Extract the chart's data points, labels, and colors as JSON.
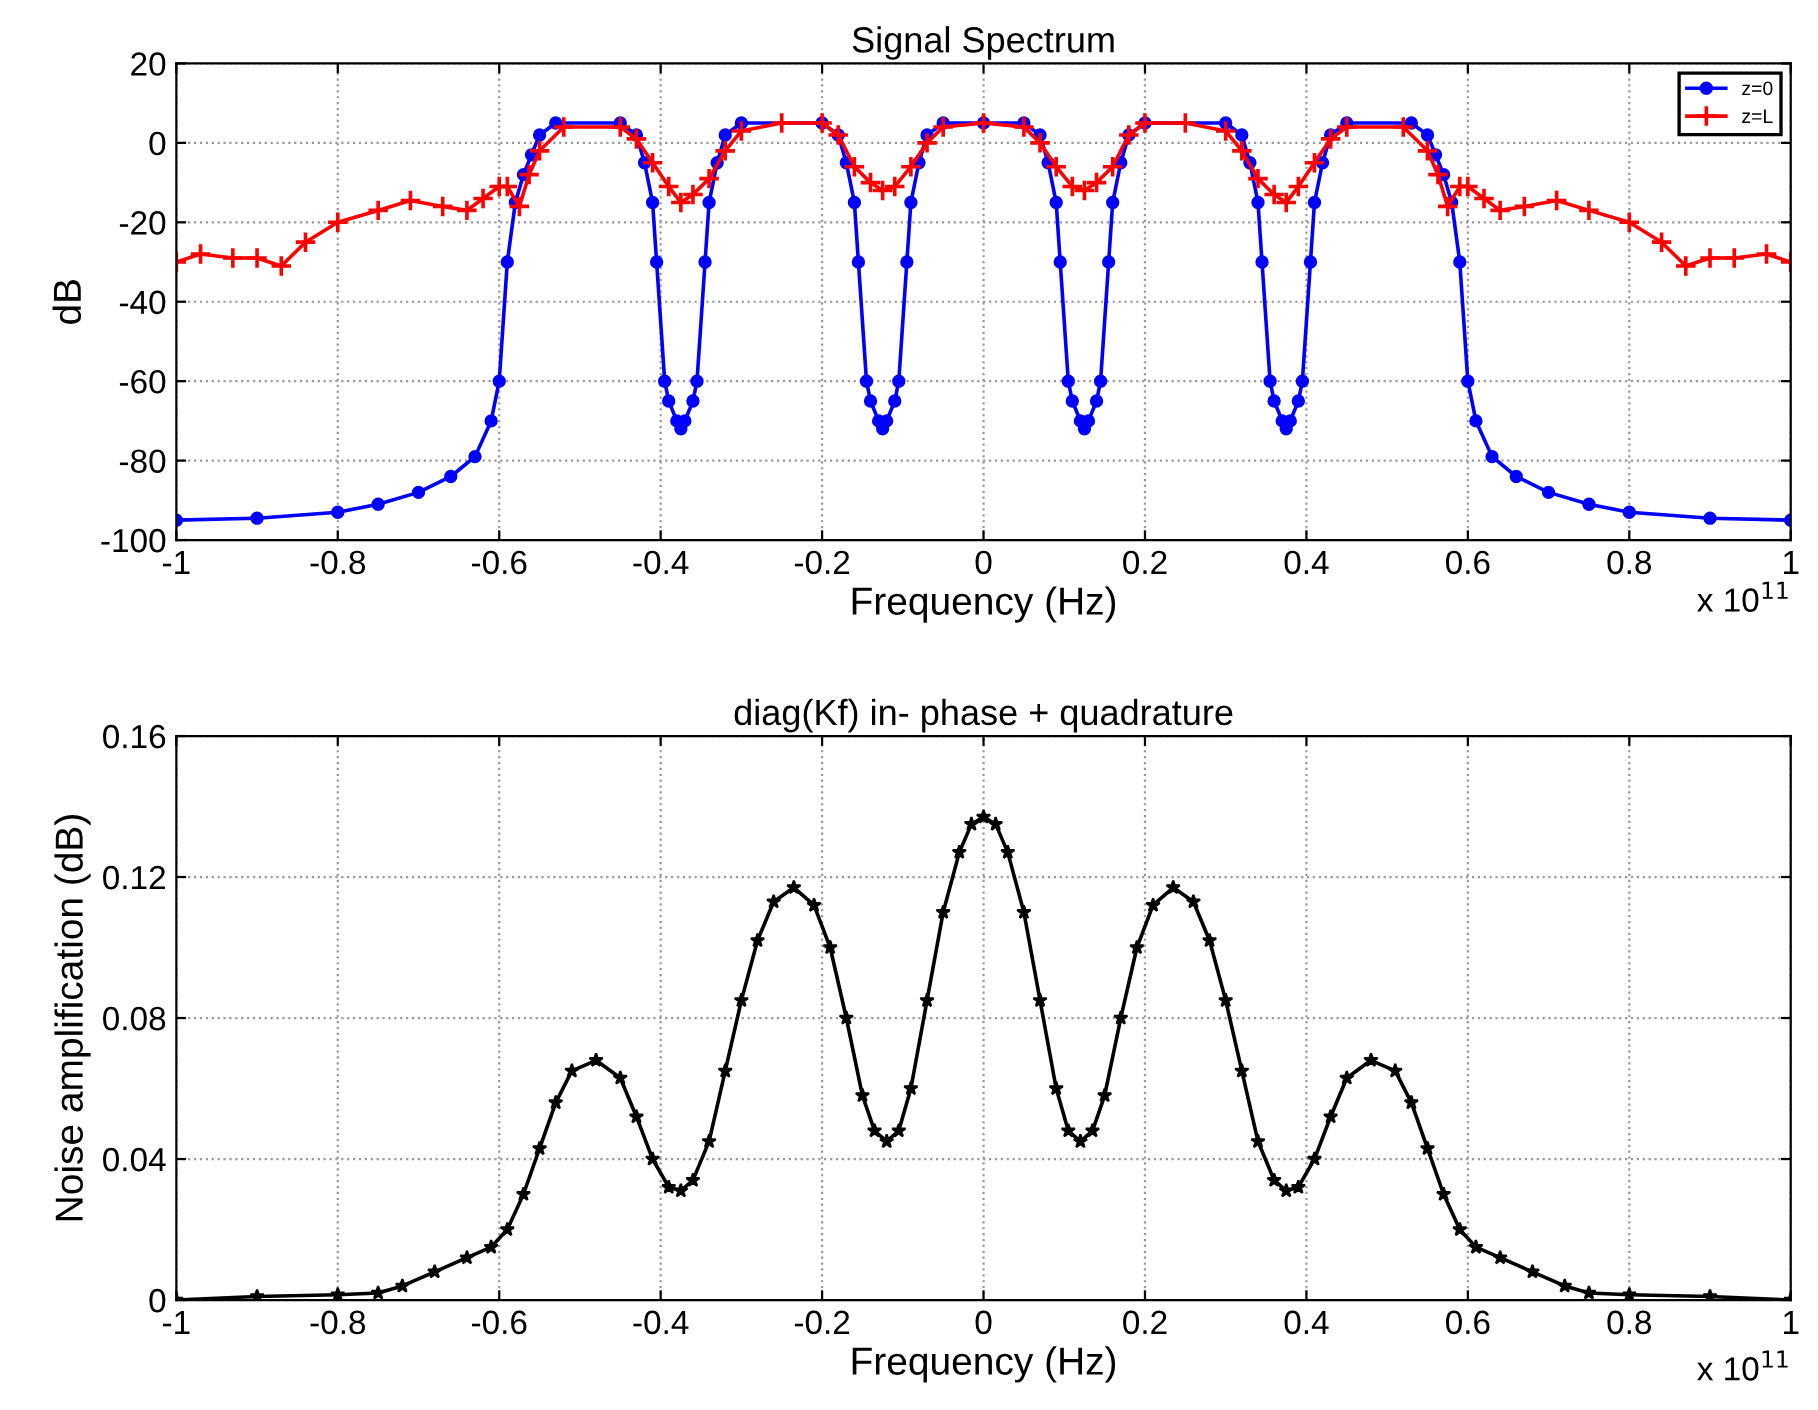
{
  "chart_data": [
    {
      "type": "line",
      "title": "Signal Spectrum",
      "xlabel": "Frequency (Hz)",
      "ylabel": "dB",
      "annotations": [
        "x 10$^{11}$"
      ],
      "xlim": [
        -1,
        1
      ],
      "xticks": [
        -1,
        -0.8,
        -0.6,
        -0.4,
        -0.2,
        0,
        0.2,
        0.4,
        0.6,
        0.8,
        1
      ],
      "ylim": [
        -100,
        20
      ],
      "yticks": [
        -100,
        -80,
        -60,
        -40,
        -20,
        0,
        20
      ],
      "grid": true,
      "legend": "top right",
      "line_style": "solid",
      "series": [
        {
          "name": "z=0",
          "color": "#0000ff",
          "marker": "circle",
          "x": [
            -1,
            -0.9,
            -0.8,
            -0.75,
            -0.7,
            -0.66,
            -0.63,
            -0.61,
            -0.6,
            -0.59,
            -0.58,
            -0.57,
            -0.56,
            -0.55,
            -0.53,
            -0.45,
            -0.43,
            -0.42,
            -0.41,
            -0.405,
            -0.395,
            -0.39,
            -0.38,
            -0.375,
            -0.37,
            -0.36,
            -0.355,
            -0.345,
            -0.34,
            -0.33,
            -0.32,
            -0.3,
            -0.2,
            -0.18,
            -0.17,
            -0.16,
            -0.155,
            -0.145,
            -0.14,
            -0.13,
            -0.125,
            -0.12,
            -0.11,
            -0.105,
            -0.095,
            -0.09,
            -0.08,
            -0.07,
            -0.05,
            0,
            0.05,
            0.07,
            0.08,
            0.09,
            0.095,
            0.105,
            0.11,
            0.12,
            0.125,
            0.13,
            0.14,
            0.145,
            0.155,
            0.16,
            0.17,
            0.18,
            0.2,
            0.3,
            0.32,
            0.33,
            0.34,
            0.345,
            0.355,
            0.36,
            0.37,
            0.375,
            0.38,
            0.39,
            0.395,
            0.405,
            0.41,
            0.42,
            0.43,
            0.45,
            0.53,
            0.55,
            0.56,
            0.57,
            0.58,
            0.59,
            0.6,
            0.61,
            0.63,
            0.66,
            0.7,
            0.75,
            0.8,
            0.9,
            1
          ],
          "values": [
            -95,
            -94.5,
            -93,
            -91,
            -88,
            -84,
            -79,
            -70,
            -60,
            -30,
            -15,
            -8,
            -3,
            2,
            5,
            5,
            2,
            -5,
            -15,
            -30,
            -60,
            -65,
            -70,
            -72,
            -70,
            -65,
            -60,
            -30,
            -15,
            -5,
            2,
            5,
            5,
            2,
            -5,
            -15,
            -30,
            -60,
            -65,
            -70,
            -72,
            -70,
            -65,
            -60,
            -30,
            -15,
            -5,
            2,
            5,
            5,
            5,
            2,
            -5,
            -15,
            -30,
            -60,
            -65,
            -70,
            -72,
            -70,
            -65,
            -60,
            -30,
            -15,
            -5,
            2,
            5,
            5,
            2,
            -5,
            -15,
            -30,
            -60,
            -65,
            -70,
            -72,
            -70,
            -65,
            -60,
            -30,
            -15,
            -5,
            2,
            5,
            5,
            2,
            -3,
            -8,
            -15,
            -30,
            -60,
            -70,
            -79,
            -84,
            -88,
            -91,
            -93,
            -94.5,
            -95
          ]
        },
        {
          "name": "z=L",
          "color": "#ff0000",
          "marker": "cross",
          "x": [
            -1,
            -0.97,
            -0.93,
            -0.9,
            -0.87,
            -0.84,
            -0.8,
            -0.75,
            -0.71,
            -0.67,
            -0.64,
            -0.62,
            -0.6,
            -0.59,
            -0.575,
            -0.563,
            -0.55,
            -0.52,
            -0.45,
            -0.43,
            -0.41,
            -0.39,
            -0.375,
            -0.36,
            -0.34,
            -0.32,
            -0.3,
            -0.25,
            -0.2,
            -0.18,
            -0.16,
            -0.14,
            -0.125,
            -0.11,
            -0.09,
            -0.07,
            -0.05,
            0,
            0.05,
            0.07,
            0.09,
            0.11,
            0.125,
            0.14,
            0.16,
            0.18,
            0.2,
            0.25,
            0.3,
            0.32,
            0.34,
            0.36,
            0.375,
            0.39,
            0.41,
            0.43,
            0.45,
            0.52,
            0.55,
            0.563,
            0.575,
            0.59,
            0.6,
            0.62,
            0.64,
            0.67,
            0.71,
            0.75,
            0.8,
            0.84,
            0.87,
            0.9,
            0.93,
            0.97,
            1
          ],
          "values": [
            -30,
            -28,
            -29,
            -29,
            -31,
            -25,
            -20,
            -17,
            -14.5,
            -16,
            -17,
            -14,
            -11,
            -11,
            -16,
            -8,
            -2,
            4,
            4,
            1,
            -5,
            -11,
            -15,
            -13,
            -9,
            -2,
            3,
            5,
            5,
            2,
            -6,
            -10,
            -12,
            -11,
            -6,
            0,
            4,
            5,
            4,
            0,
            -6,
            -11,
            -12,
            -10,
            -6,
            2,
            5,
            5,
            3,
            -2,
            -9,
            -13,
            -15,
            -11,
            -5,
            1,
            4,
            4,
            -2,
            -8,
            -16,
            -11,
            -11,
            -14,
            -17,
            -16,
            -14.5,
            -17,
            -20,
            -25,
            -31,
            -29,
            -29,
            -28,
            -30
          ]
        }
      ]
    },
    {
      "type": "line",
      "title": "diag(Kf) in- phase + quadrature",
      "xlabel": "Frequency (Hz)",
      "ylabel": "Noise amplification (dB)",
      "annotations": [
        "x 10$^{11}$"
      ],
      "xlim": [
        -1,
        1
      ],
      "xticks": [
        -1,
        -0.8,
        -0.6,
        -0.4,
        -0.2,
        0,
        0.2,
        0.4,
        0.6,
        0.8,
        1
      ],
      "ylim": [
        0,
        0.16
      ],
      "yticks": [
        0,
        0.04,
        0.08,
        0.12,
        0.16
      ],
      "grid": true,
      "line_style": "solid",
      "series": [
        {
          "color": "#000000",
          "marker": "star",
          "x": [
            -1,
            -0.9,
            -0.8,
            -0.75,
            -0.72,
            -0.68,
            -0.64,
            -0.61,
            -0.59,
            -0.57,
            -0.55,
            -0.53,
            -0.51,
            -0.48,
            -0.45,
            -0.43,
            -0.41,
            -0.39,
            -0.375,
            -0.36,
            -0.34,
            -0.32,
            -0.3,
            -0.28,
            -0.26,
            -0.235,
            -0.21,
            -0.19,
            -0.17,
            -0.15,
            -0.135,
            -0.12,
            -0.105,
            -0.09,
            -0.07,
            -0.05,
            -0.03,
            -0.015,
            0,
            0.015,
            0.03,
            0.05,
            0.07,
            0.09,
            0.105,
            0.12,
            0.135,
            0.15,
            0.17,
            0.19,
            0.21,
            0.235,
            0.26,
            0.28,
            0.3,
            0.32,
            0.34,
            0.36,
            0.375,
            0.39,
            0.41,
            0.43,
            0.45,
            0.48,
            0.51,
            0.53,
            0.55,
            0.57,
            0.59,
            0.61,
            0.64,
            0.68,
            0.72,
            0.75,
            0.8,
            0.9,
            1
          ],
          "values": [
            0,
            0.001,
            0.0015,
            0.002,
            0.004,
            0.008,
            0.012,
            0.015,
            0.02,
            0.03,
            0.043,
            0.056,
            0.065,
            0.068,
            0.063,
            0.052,
            0.04,
            0.032,
            0.031,
            0.034,
            0.045,
            0.065,
            0.085,
            0.102,
            0.113,
            0.117,
            0.112,
            0.1,
            0.08,
            0.058,
            0.048,
            0.045,
            0.048,
            0.06,
            0.085,
            0.11,
            0.127,
            0.135,
            0.137,
            0.135,
            0.127,
            0.11,
            0.085,
            0.06,
            0.048,
            0.045,
            0.048,
            0.058,
            0.08,
            0.1,
            0.112,
            0.117,
            0.113,
            0.102,
            0.085,
            0.065,
            0.045,
            0.034,
            0.031,
            0.032,
            0.04,
            0.052,
            0.063,
            0.068,
            0.065,
            0.056,
            0.043,
            0.03,
            0.02,
            0.015,
            0.012,
            0.008,
            0.004,
            0.002,
            0.0015,
            0.001,
            0
          ]
        }
      ]
    }
  ]
}
